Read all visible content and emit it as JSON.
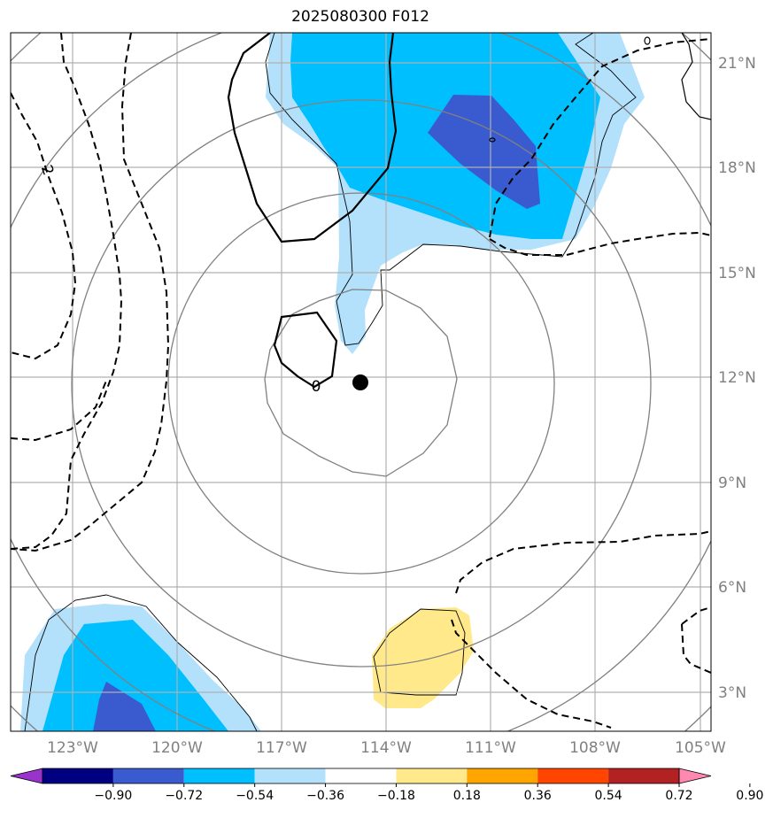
{
  "title": "2025080300 F012",
  "lon_labels": [
    "123°W",
    "120°W",
    "117°W",
    "114°W",
    "111°W",
    "108°W",
    "105°W"
  ],
  "lat_labels": [
    "21°N",
    "18°N",
    "15°N",
    "12°N",
    "9°N",
    "6°N",
    "3°N"
  ],
  "contour_labels": [
    "2",
    "0"
  ],
  "colorbar": {
    "ticks": [
      "−0.90",
      "−0.72",
      "−0.54",
      "−0.36",
      "−0.18",
      "0.18",
      "0.36",
      "0.54",
      "0.72",
      "0.90"
    ],
    "colors": [
      "#9933cc",
      "#000080",
      "#3a5bd0",
      "#00bfff",
      "#b3e0fb",
      "#ffffff",
      "#ffe98a",
      "#ffa500",
      "#ff4500",
      "#b22222",
      "#ff88b0"
    ]
  },
  "storm_center": {
    "lon": "114.8°W",
    "lat": "11.9°N"
  }
}
